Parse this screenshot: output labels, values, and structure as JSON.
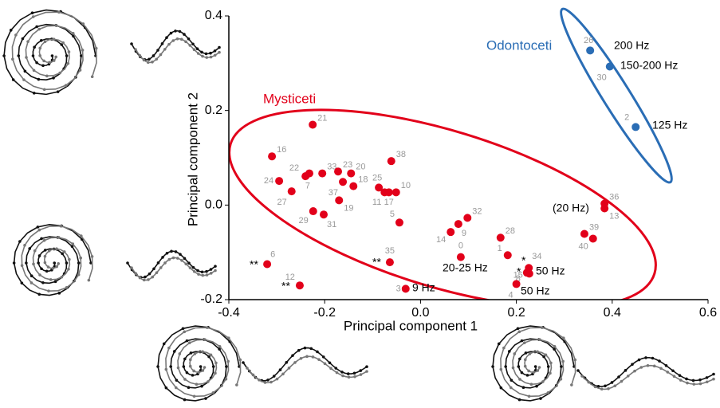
{
  "chart_data": {
    "type": "scatter",
    "xlabel": "Principal component 1",
    "ylabel": "Principal component 2",
    "xlim": [
      -0.4,
      0.6
    ],
    "ylim": [
      -0.2,
      0.4
    ],
    "xticks": [
      -0.4,
      -0.2,
      {
        "value": 0,
        "label": "0.0"
      },
      0.2,
      0.4,
      0.6
    ],
    "yticks": [
      -0.2,
      {
        "value": 0,
        "label": "0.0"
      },
      0.2,
      0.4
    ],
    "series": [
      {
        "name": "Mysticeti",
        "color": "#e2001a",
        "labels": [
          "21",
          "16",
          "22",
          "7",
          "33",
          "23",
          "20",
          "24",
          "37",
          "18",
          "27",
          "38",
          "25",
          "11",
          "17",
          "10",
          "19",
          "29",
          "31",
          "5",
          "9",
          "32",
          "14",
          "28",
          "36",
          "13",
          "39",
          "40",
          "1",
          "34",
          "8",
          "15",
          "4",
          "0",
          "35",
          "6",
          "12",
          "3"
        ],
        "x": [
          -0.225,
          -0.31,
          -0.24,
          -0.232,
          -0.205,
          -0.172,
          -0.145,
          -0.295,
          -0.162,
          -0.14,
          -0.269,
          -0.061,
          -0.087,
          -0.075,
          -0.066,
          -0.051,
          -0.17,
          -0.224,
          -0.202,
          -0.044,
          0.079,
          0.098,
          0.063,
          0.167,
          0.384,
          0.384,
          0.342,
          0.36,
          0.182,
          0.226,
          0.222,
          0.227,
          0.2,
          0.084,
          -0.064,
          -0.32,
          -0.252,
          -0.031
        ],
        "y": [
          0.17,
          0.103,
          0.061,
          0.067,
          0.067,
          0.071,
          0.067,
          0.051,
          0.049,
          0.04,
          0.029,
          0.093,
          0.037,
          0.027,
          0.027,
          0.027,
          0.01,
          -0.013,
          -0.02,
          -0.037,
          -0.04,
          -0.027,
          -0.057,
          -0.069,
          0.003,
          -0.007,
          -0.061,
          -0.071,
          -0.106,
          -0.133,
          -0.143,
          -0.145,
          -0.167,
          -0.11,
          -0.121,
          -0.125,
          -0.17,
          -0.177
        ]
      },
      {
        "name": "Odontoceti",
        "color": "#2a6db5",
        "labels": [
          "26",
          "30",
          "2"
        ],
        "x": [
          0.354,
          0.395,
          0.449
        ],
        "y": [
          0.327,
          0.293,
          0.165
        ]
      }
    ],
    "annotations": [
      "200 Hz",
      "150-200 Hz",
      "125 Hz",
      "(20 Hz)",
      "20-25 Hz",
      "50 Hz",
      "50 Hz",
      "9 Hz",
      "**",
      "**",
      "**",
      "*",
      "*"
    ]
  }
}
